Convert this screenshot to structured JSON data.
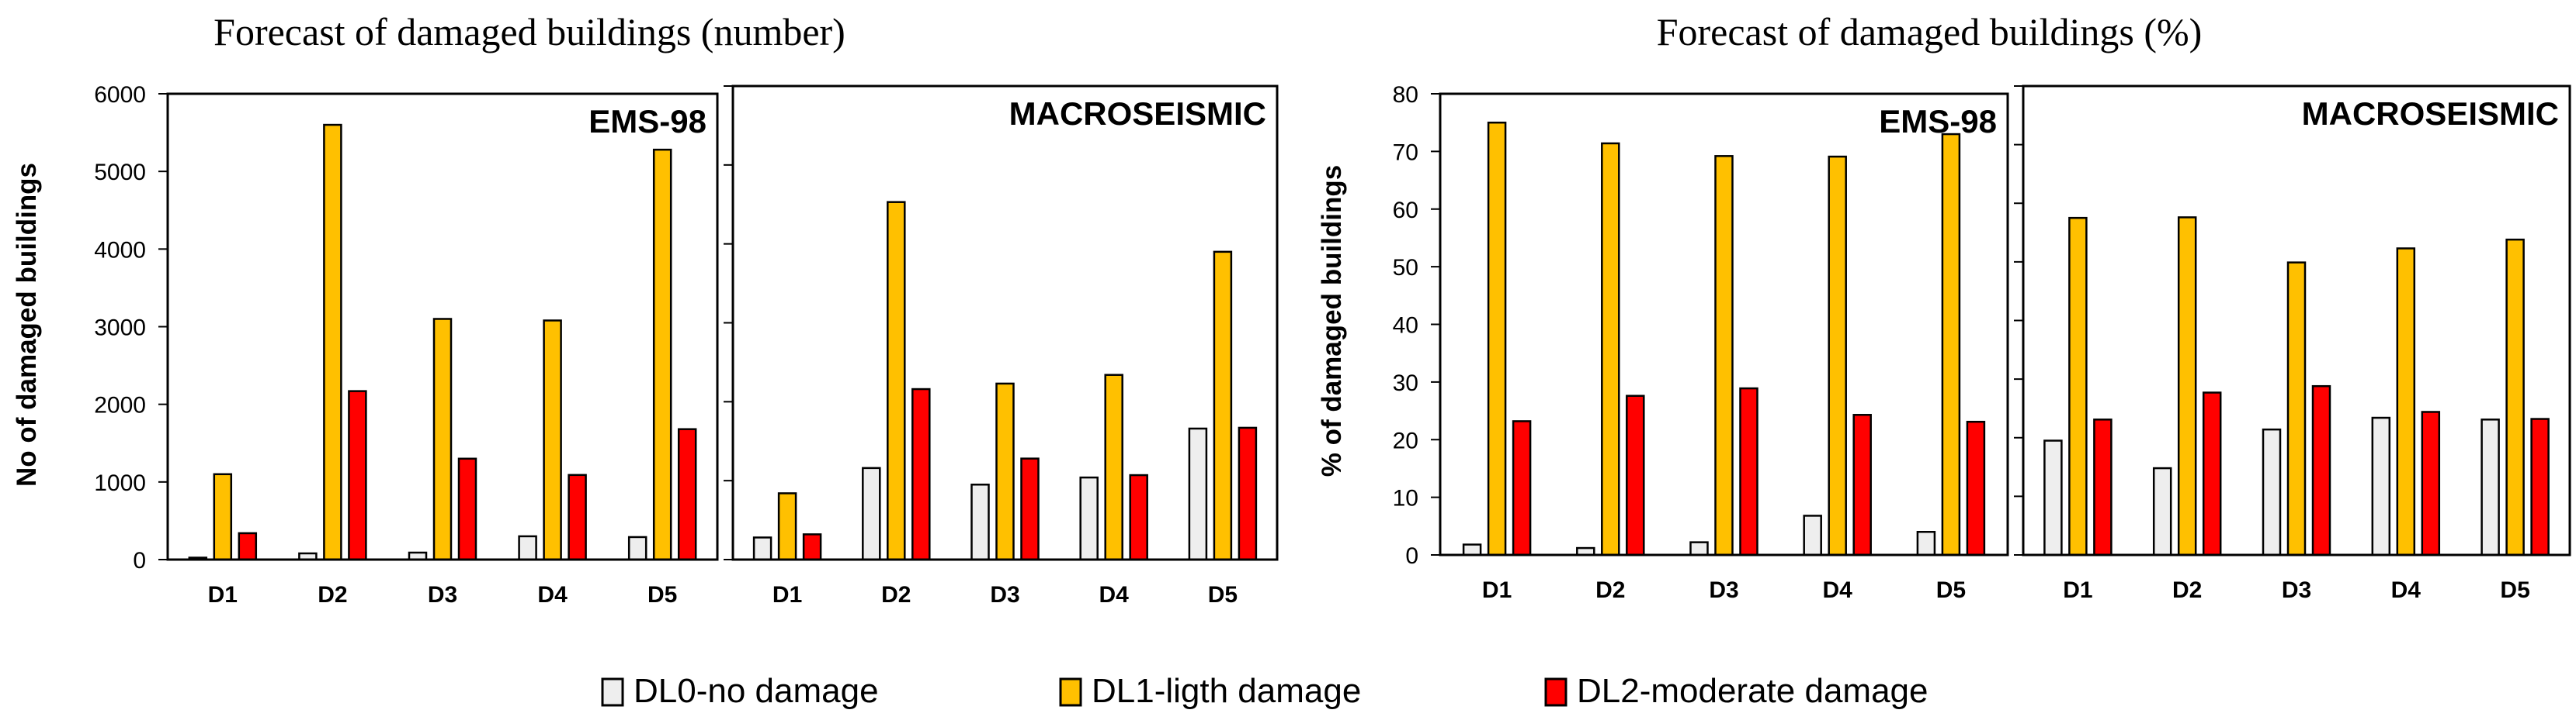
{
  "figure": {
    "titles": {
      "left": "Forecast of damaged buildings (number)",
      "right": "Forecast of damaged buildings (%)"
    },
    "legend": [
      {
        "label": "DL0-no damage",
        "color": "#eeeeee"
      },
      {
        "label": "DL1-ligth damage",
        "color": "#ffc000"
      },
      {
        "label": "DL2-moderate damage",
        "color": "#ff0000"
      }
    ]
  },
  "chart_data": [
    {
      "type": "bar",
      "title": "EMS-98",
      "group": "number",
      "categories": [
        "D1",
        "D2",
        "D3",
        "D4",
        "D5"
      ],
      "ylabel": "No of damaged buildings",
      "ylim": [
        0,
        6000
      ],
      "yticks": [
        0,
        1000,
        2000,
        3000,
        4000,
        5000,
        6000
      ],
      "series": [
        {
          "name": "DL0-no damage",
          "values": [
            25,
            80,
            90,
            300,
            290
          ]
        },
        {
          "name": "DL1-ligth damage",
          "values": [
            1100,
            5600,
            3100,
            3080,
            5280
          ]
        },
        {
          "name": "DL2-moderate damage",
          "values": [
            340,
            2170,
            1300,
            1090,
            1680
          ]
        }
      ]
    },
    {
      "type": "bar",
      "title": "MACROSEISMIC",
      "group": "number",
      "categories": [
        "D1",
        "D2",
        "D3",
        "D4",
        "D5"
      ],
      "ylabel": "",
      "ylim": [
        0,
        6000
      ],
      "yticks": [
        0,
        1000,
        2000,
        3000,
        4000,
        5000,
        6000
      ],
      "series": [
        {
          "name": "DL0-no damage",
          "values": [
            280,
            1160,
            950,
            1040,
            1660
          ]
        },
        {
          "name": "DL1-ligth damage",
          "values": [
            840,
            4530,
            2230,
            2340,
            3900
          ]
        },
        {
          "name": "DL2-moderate damage",
          "values": [
            320,
            2160,
            1280,
            1070,
            1670
          ]
        }
      ]
    },
    {
      "type": "bar",
      "title": "EMS-98",
      "group": "percent",
      "categories": [
        "D1",
        "D2",
        "D3",
        "D4",
        "D5"
      ],
      "ylabel": "% of damaged buildings",
      "ylim": [
        0,
        80
      ],
      "yticks": [
        0,
        10,
        20,
        30,
        40,
        50,
        60,
        70,
        80
      ],
      "series": [
        {
          "name": "DL0-no damage",
          "values": [
            1.8,
            1.2,
            2.2,
            6.8,
            4.0
          ]
        },
        {
          "name": "DL1-ligth damage",
          "values": [
            75,
            71.4,
            69.2,
            69.1,
            73
          ]
        },
        {
          "name": "DL2-moderate damage",
          "values": [
            23.2,
            27.6,
            28.9,
            24.3,
            23.1
          ]
        }
      ]
    },
    {
      "type": "bar",
      "title": "MACROSEISMIC",
      "group": "percent",
      "categories": [
        "D1",
        "D2",
        "D3",
        "D4",
        "D5"
      ],
      "ylabel": "",
      "ylim": [
        0,
        80
      ],
      "yticks": [
        0,
        10,
        20,
        30,
        40,
        50,
        60,
        70,
        80
      ],
      "series": [
        {
          "name": "DL0-no damage",
          "values": [
            19.5,
            14.8,
            21.4,
            23.4,
            23.1
          ]
        },
        {
          "name": "DL1-ligth damage",
          "values": [
            57.5,
            57.6,
            49.9,
            52.3,
            53.8
          ]
        },
        {
          "name": "DL2-moderate damage",
          "values": [
            23.1,
            27.7,
            28.8,
            24.4,
            23.2
          ]
        }
      ]
    }
  ]
}
